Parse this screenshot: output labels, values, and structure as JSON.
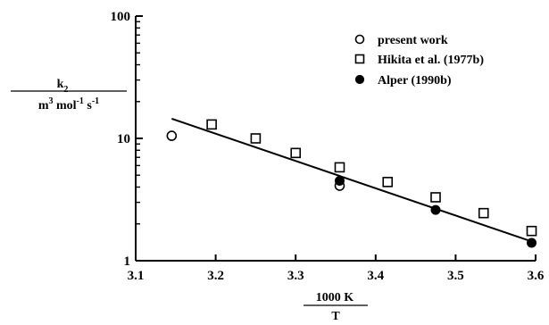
{
  "chart_data": {
    "type": "scatter",
    "x_ticks": [
      "3.1",
      "3.2",
      "3.3",
      "3.4",
      "3.5",
      "3.6"
    ],
    "y_ticks": [
      "1",
      "10",
      "100"
    ],
    "xlim": [
      3.1,
      3.6
    ],
    "ylim": [
      1,
      100
    ],
    "y_scale": "log",
    "grid": false,
    "legend_position": "top-right",
    "xlabel": {
      "numerator": "1000 K",
      "denominator": "T"
    },
    "ylabel": {
      "numerator": "k2",
      "denominator": "m3 mol-1 s-1"
    },
    "series": [
      {
        "name": "present work",
        "marker": "open-circle",
        "x": [
          3.145,
          3.355
        ],
        "y": [
          10.5,
          4.1
        ]
      },
      {
        "name": "Hikita et al. (1977b)",
        "marker": "open-square",
        "x": [
          3.195,
          3.25,
          3.3,
          3.355,
          3.415,
          3.475,
          3.535,
          3.595
        ],
        "y": [
          13.0,
          10.0,
          7.6,
          5.8,
          4.4,
          3.3,
          2.45,
          1.75
        ]
      },
      {
        "name": "Alper (1990b)",
        "marker": "filled-circle",
        "x": [
          3.355,
          3.475,
          3.595
        ],
        "y": [
          4.5,
          2.6,
          1.4
        ]
      }
    ],
    "fit_line": {
      "x": [
        3.145,
        3.6
      ],
      "y": [
        14.5,
        1.4
      ]
    }
  }
}
